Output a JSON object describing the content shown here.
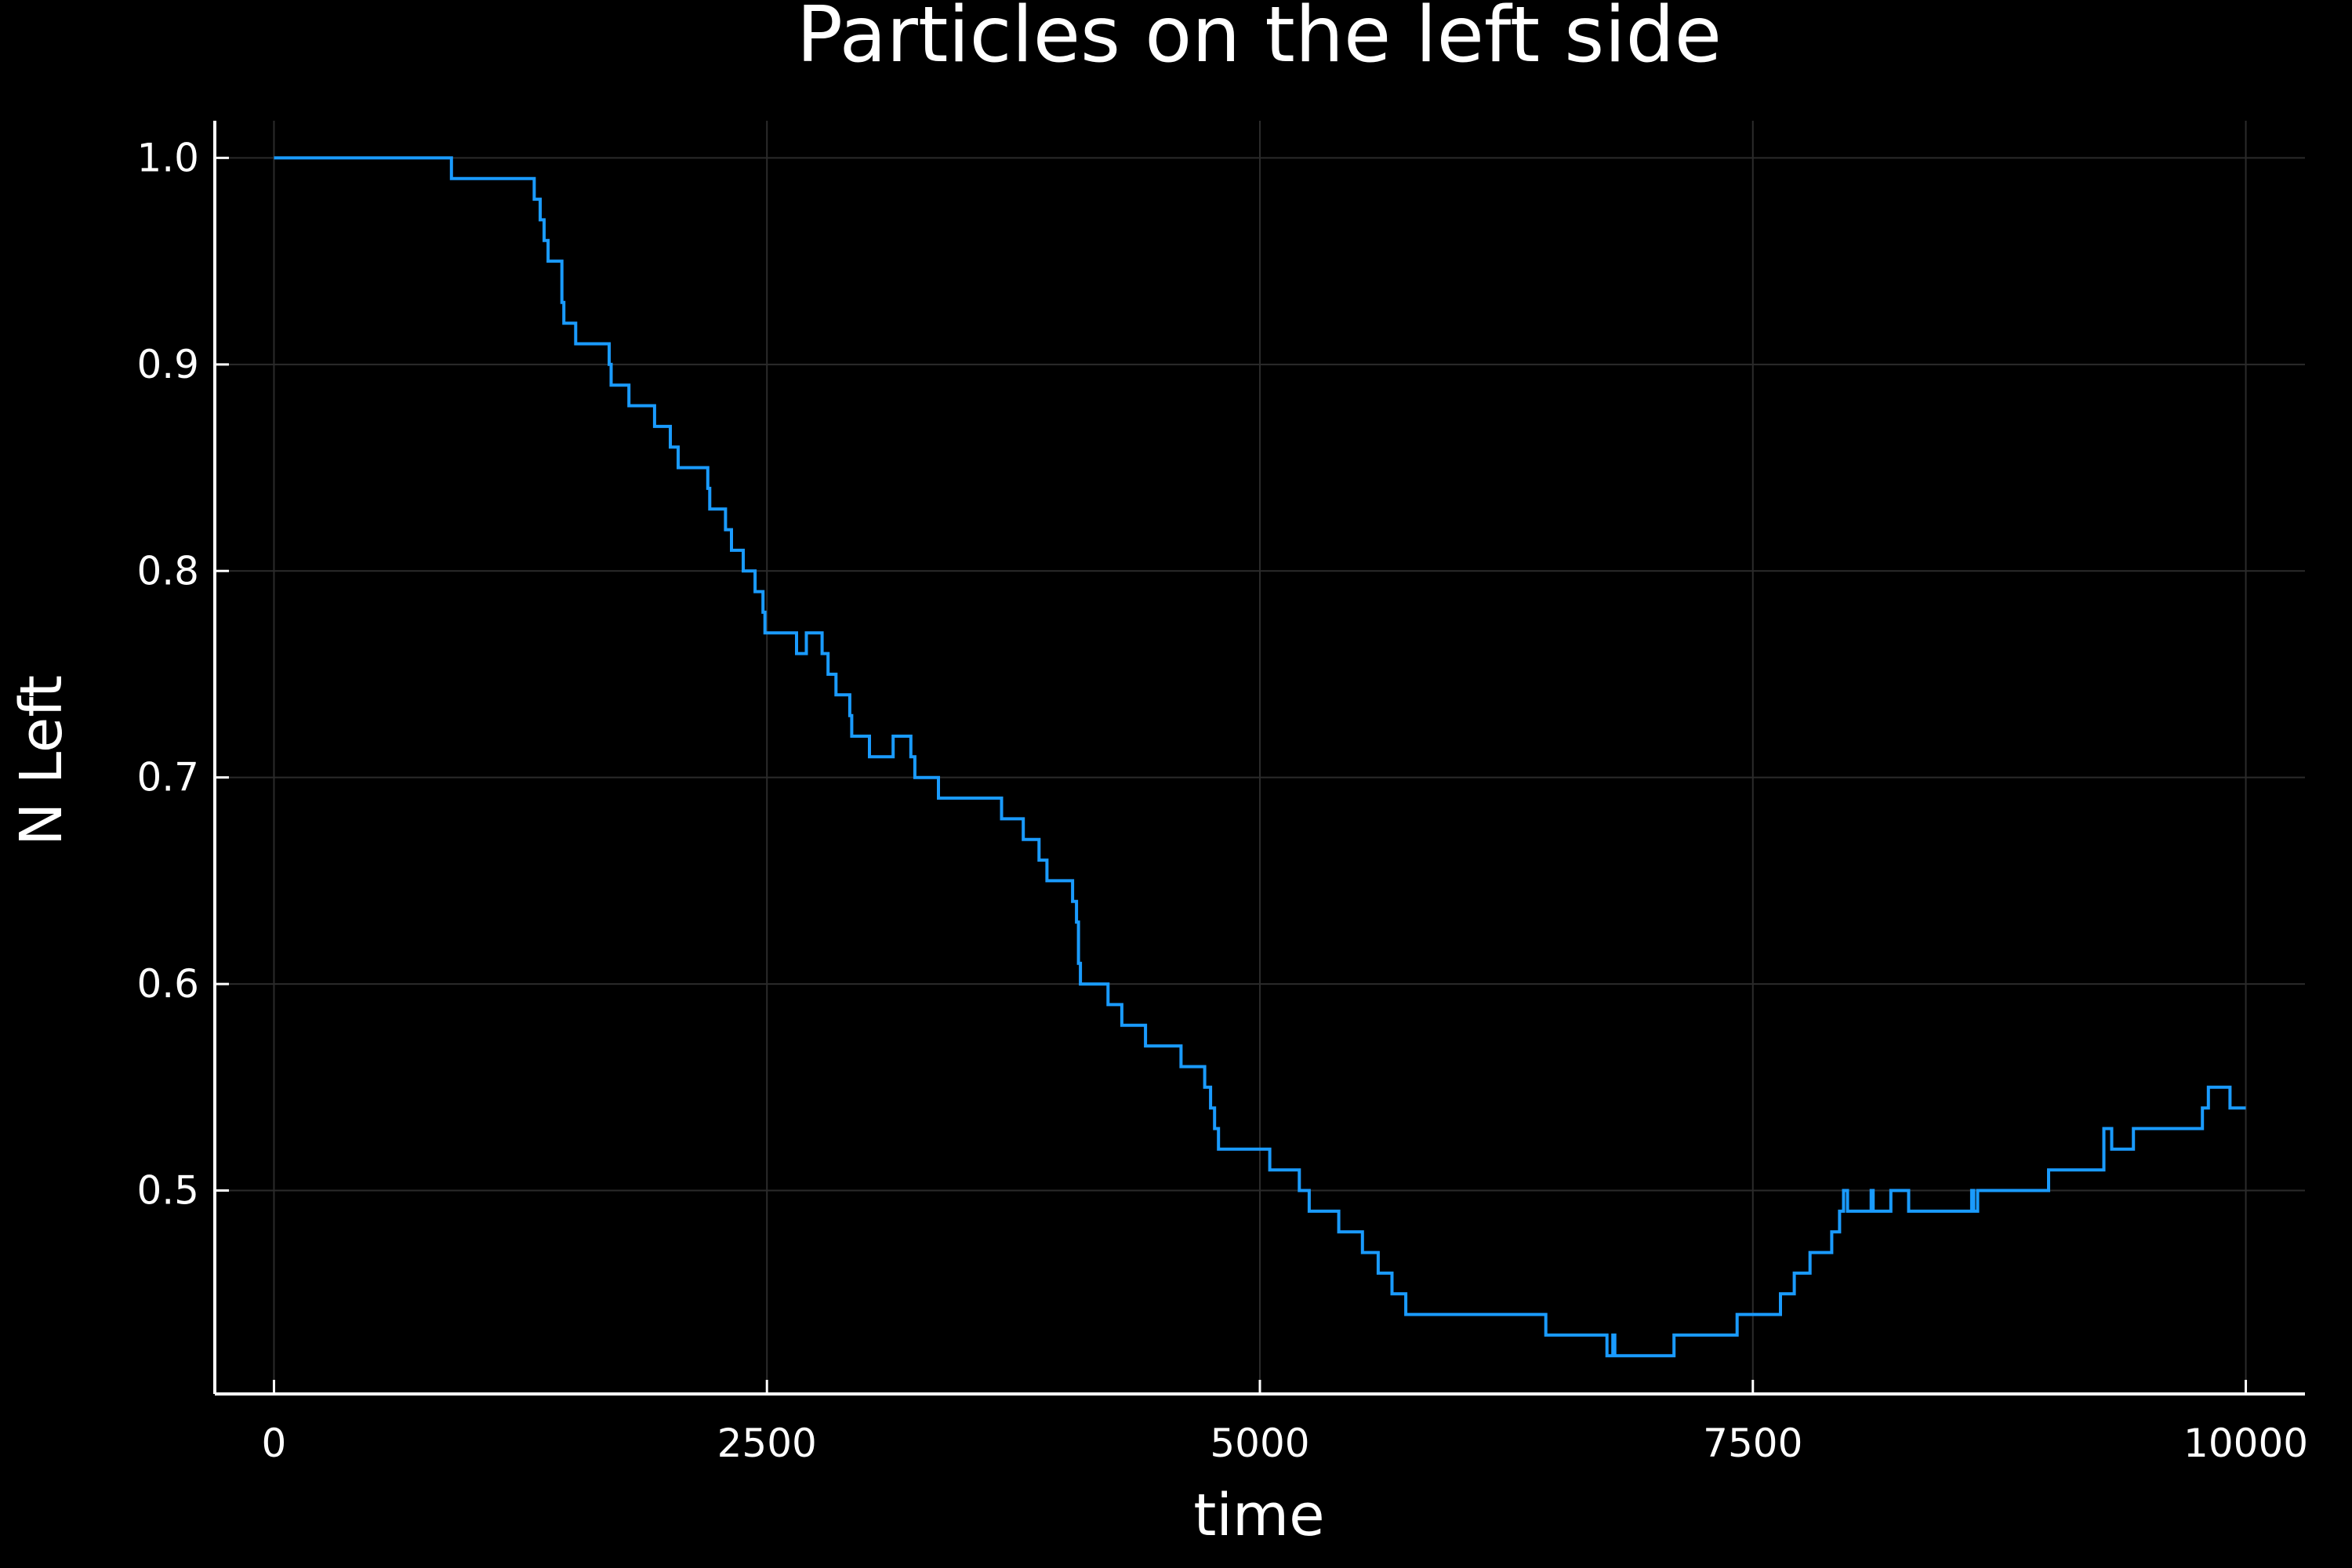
{
  "chart_data": {
    "type": "line",
    "line_style": "step",
    "title": "Particles on the left side",
    "xlabel": "time",
    "ylabel": "N Left",
    "xlim": [
      -300,
      10300
    ],
    "ylim": [
      0.4015,
      1.018
    ],
    "xticks": [
      0,
      2500,
      5000,
      7500,
      10000
    ],
    "xtick_labels": [
      "0",
      "2500",
      "5000",
      "7500",
      "10000"
    ],
    "yticks": [
      0.5,
      0.6,
      0.7,
      0.8,
      0.9,
      1.0
    ],
    "ytick_labels": [
      "0.5",
      "0.6",
      "0.7",
      "0.8",
      "0.9",
      "1.0"
    ],
    "grid": true,
    "legend": "none",
    "colors": {
      "background": "#000000",
      "series": "#1a9bff",
      "axis": "#ffffff",
      "grid": "#2b2b2b",
      "text": "#ffffff"
    },
    "series": [
      {
        "x": [
          0,
          900,
          1320,
          1350,
          1370,
          1390,
          1400,
          1460,
          1470,
          1480,
          1530,
          1700,
          1710,
          1800,
          1930,
          2010,
          2050,
          2200,
          2210,
          2290,
          2320,
          2380,
          2440,
          2480,
          2490,
          2500,
          2650,
          2700,
          2780,
          2810,
          2850,
          2920,
          2930,
          3020,
          3140,
          3230,
          3250,
          3370,
          3690,
          3800,
          3880,
          3920,
          4050,
          4070,
          4080,
          4090,
          4100,
          4230,
          4300,
          4420,
          4600,
          4720,
          4730,
          4750,
          4770,
          4790,
          5050,
          5200,
          5250,
          5400,
          5520,
          5600,
          5670,
          5740,
          6450,
          6760,
          6790,
          6800,
          6830,
          7100,
          7420,
          7640,
          7710,
          7790,
          7900,
          7940,
          7960,
          7980,
          8100,
          8110,
          8130,
          8200,
          8290,
          8610,
          8620,
          8640,
          8640,
          9000,
          9020,
          9280,
          9280,
          9320,
          9350,
          9430,
          9780,
          9800,
          9810,
          9920,
          10000
        ],
        "y": [
          1.0,
          0.99,
          0.98,
          0.97,
          0.96,
          0.95,
          0.95,
          0.93,
          0.92,
          0.92,
          0.91,
          0.9,
          0.89,
          0.88,
          0.87,
          0.86,
          0.85,
          0.84,
          0.83,
          0.82,
          0.81,
          0.8,
          0.79,
          0.78,
          0.77,
          0.77,
          0.76,
          0.77,
          0.76,
          0.75,
          0.74,
          0.73,
          0.72,
          0.71,
          0.72,
          0.71,
          0.7,
          0.69,
          0.68,
          0.67,
          0.66,
          0.65,
          0.64,
          0.63,
          0.61,
          0.6,
          0.6,
          0.59,
          0.58,
          0.57,
          0.56,
          0.55,
          0.55,
          0.54,
          0.53,
          0.52,
          0.51,
          0.5,
          0.49,
          0.48,
          0.47,
          0.46,
          0.45,
          0.44,
          0.43,
          0.42,
          0.43,
          0.42,
          0.42,
          0.43,
          0.44,
          0.45,
          0.46,
          0.47,
          0.48,
          0.49,
          0.5,
          0.49,
          0.5,
          0.49,
          0.49,
          0.5,
          0.49,
          0.5,
          0.49,
          0.49,
          0.5,
          0.51,
          0.51,
          0.52,
          0.53,
          0.52,
          0.52,
          0.53,
          0.54,
          0.54,
          0.55,
          0.54,
          0.54
        ]
      }
    ]
  }
}
